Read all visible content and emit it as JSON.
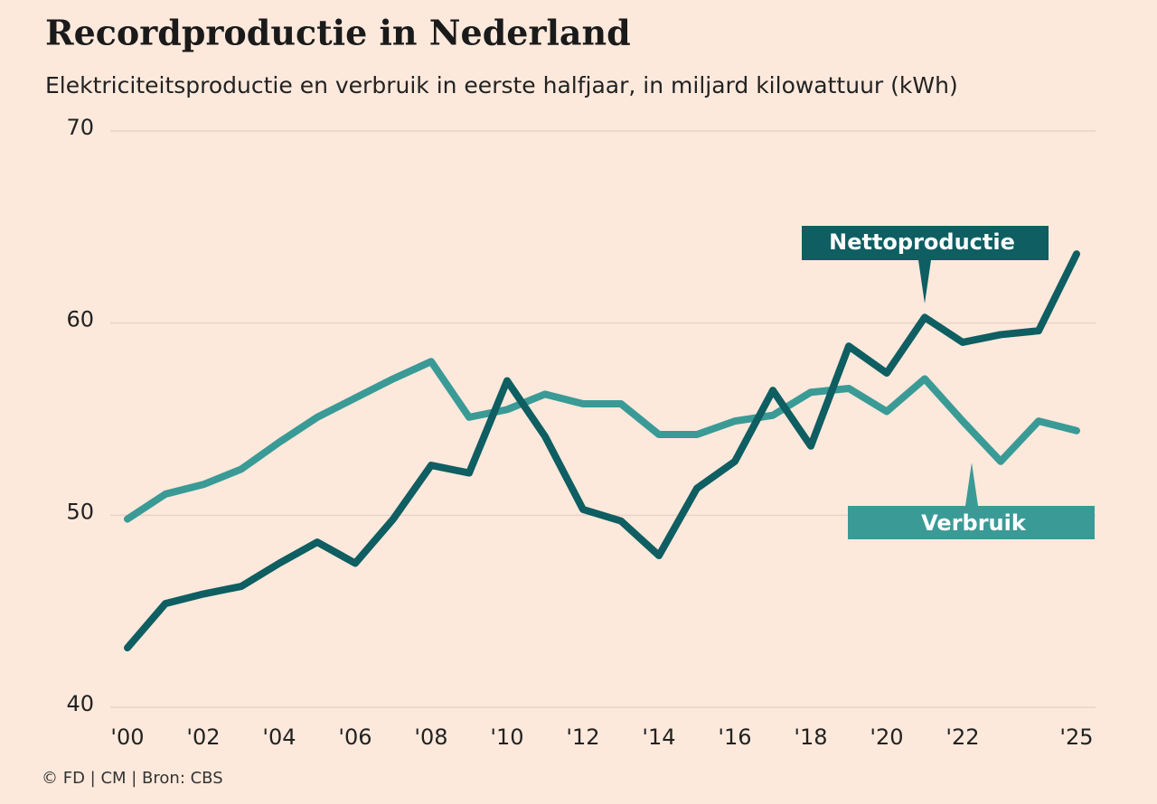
{
  "chart_data": {
    "type": "line",
    "title": "Recordproductie in Nederland",
    "subtitle": "Elektriciteitsproductie en verbruik in eerste halfjaar, in miljard kilowattuur (kWh)",
    "source": "© FD | CM | Bron: CBS",
    "x": [
      2000,
      2001,
      2002,
      2003,
      2004,
      2005,
      2006,
      2007,
      2008,
      2009,
      2010,
      2011,
      2012,
      2013,
      2014,
      2015,
      2016,
      2017,
      2018,
      2019,
      2020,
      2021,
      2022,
      2023,
      2024,
      2025
    ],
    "series": [
      {
        "name": "Nettoproductie",
        "color": "#0e5e62",
        "values": [
          43.1,
          45.4,
          45.9,
          46.3,
          47.5,
          48.6,
          47.5,
          49.8,
          52.6,
          52.2,
          57.0,
          54.1,
          50.3,
          49.7,
          47.9,
          51.4,
          52.8,
          56.5,
          53.6,
          58.8,
          57.4,
          60.3,
          59.0,
          59.4,
          59.6,
          63.6
        ]
      },
      {
        "name": "Verbruik",
        "color": "#3a9a96",
        "values": [
          49.8,
          51.1,
          51.6,
          52.4,
          53.8,
          55.1,
          56.1,
          57.1,
          58.0,
          55.1,
          55.5,
          56.3,
          55.8,
          55.8,
          54.2,
          54.2,
          54.9,
          55.2,
          56.4,
          56.6,
          55.4,
          57.1,
          54.9,
          52.8,
          54.9,
          54.4
        ]
      }
    ],
    "xlim": [
      2000,
      2025
    ],
    "xticks": [
      {
        "value": 2000,
        "label": "'00"
      },
      {
        "value": 2002,
        "label": "'02"
      },
      {
        "value": 2004,
        "label": "'04"
      },
      {
        "value": 2006,
        "label": "'06"
      },
      {
        "value": 2008,
        "label": "'08"
      },
      {
        "value": 2010,
        "label": "'10"
      },
      {
        "value": 2012,
        "label": "'12"
      },
      {
        "value": 2014,
        "label": "'14"
      },
      {
        "value": 2016,
        "label": "'16"
      },
      {
        "value": 2018,
        "label": "'18"
      },
      {
        "value": 2020,
        "label": "'20"
      },
      {
        "value": 2022,
        "label": "'22"
      },
      {
        "value": 2025,
        "label": "'25"
      }
    ],
    "ylim": [
      40,
      70
    ],
    "yticks": [
      40,
      50,
      60,
      70
    ],
    "grid": true
  }
}
